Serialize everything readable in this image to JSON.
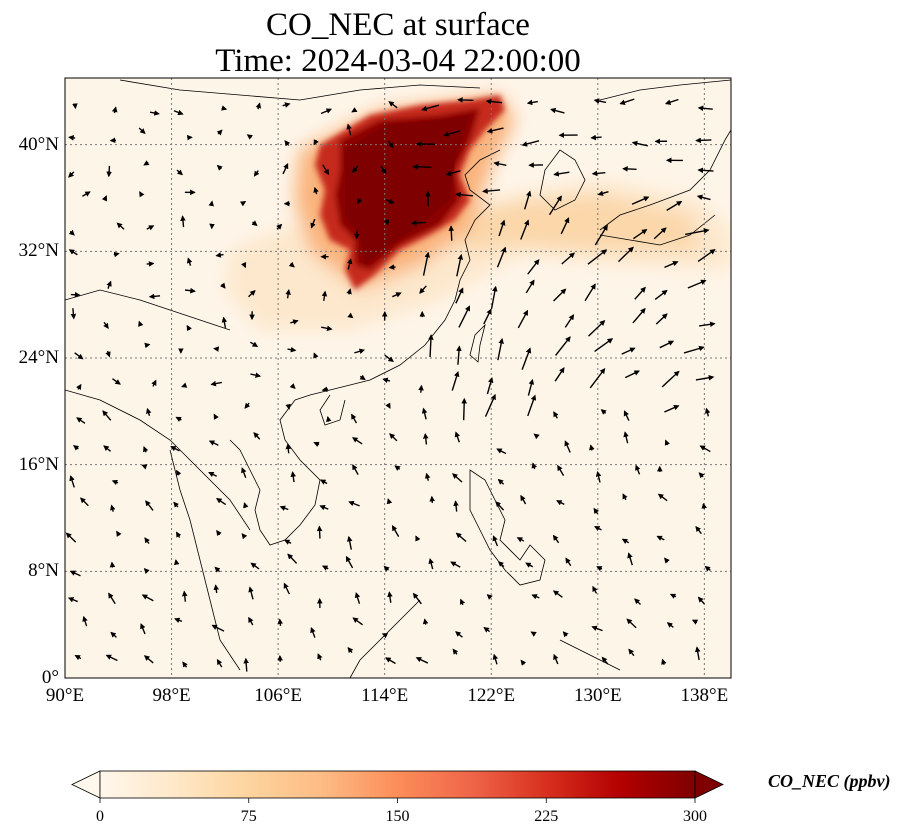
{
  "title_line1": "CO_NEC at surface",
  "title_line2": "Time: 2024-03-04 22:00:00",
  "map": {
    "lon_range": [
      90,
      140
    ],
    "lat_range": [
      0,
      45
    ],
    "lon_ticks": [
      {
        "value": 90,
        "label": "90°E"
      },
      {
        "value": 98,
        "label": "98°E"
      },
      {
        "value": 106,
        "label": "106°E"
      },
      {
        "value": 114,
        "label": "114°E"
      },
      {
        "value": 122,
        "label": "122°E"
      },
      {
        "value": 130,
        "label": "130°E"
      },
      {
        "value": 138,
        "label": "138°E"
      }
    ],
    "lat_ticks": [
      {
        "value": 0,
        "label": "0°"
      },
      {
        "value": 8,
        "label": "8°N"
      },
      {
        "value": 16,
        "label": "16°N"
      },
      {
        "value": 24,
        "label": "24°N"
      },
      {
        "value": 32,
        "label": "32°N"
      },
      {
        "value": 40,
        "label": "40°N"
      }
    ],
    "gridlines": true,
    "field_colors": {
      "background": "#fef5e9",
      "low": "#fde3c3",
      "mid": "#f9a65a",
      "high": "#b80000",
      "max": "#7f0000"
    }
  },
  "colorbar": {
    "label": "CO_NEC (ppbv)",
    "ticks": [
      {
        "value": 0,
        "label": "0"
      },
      {
        "value": 75,
        "label": "75"
      },
      {
        "value": 150,
        "label": "150"
      },
      {
        "value": 225,
        "label": "225"
      },
      {
        "value": 300,
        "label": "300"
      }
    ],
    "range": [
      0,
      300
    ],
    "extend": "both",
    "cmap_stops": [
      "#fff7ec",
      "#fee8c8",
      "#fdd49e",
      "#fdbb84",
      "#fc8d59",
      "#ef6548",
      "#d7301f",
      "#b30000",
      "#7f0000"
    ]
  }
}
